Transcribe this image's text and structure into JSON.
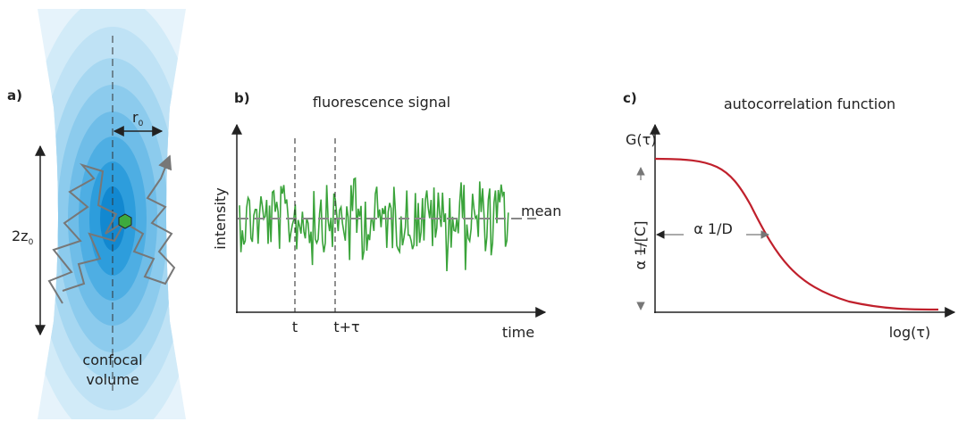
{
  "panel_a": {
    "label": "a)",
    "radius": {
      "base": "r",
      "sub": "0"
    },
    "height": {
      "base": "2z",
      "sub": "0"
    },
    "caption": [
      "confocal",
      "volume"
    ]
  },
  "panel_b": {
    "label": "b)",
    "title": "fluorescence signal",
    "y_axis": "intensity",
    "mean": "mean",
    "t": "t",
    "t_tau": "t+τ",
    "x_axis": "time"
  },
  "panel_c": {
    "label": "c)",
    "title": "autocorrelation function",
    "y_axis": "G(τ)",
    "amplitude": "α 1/[C]",
    "decay": "α 1/D",
    "x_axis": "log(τ)"
  }
}
